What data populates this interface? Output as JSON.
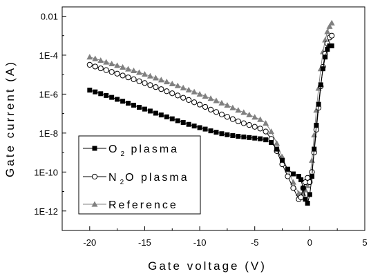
{
  "chart_data": {
    "type": "scatter",
    "xlabel": "Gate voltage (V)",
    "ylabel": "Gate current (A)",
    "xlim": [
      -22.5,
      5
    ],
    "ylim": [
      1e-13,
      0.03
    ],
    "y_scale": "log",
    "x_ticks": [
      -20,
      -15,
      -10,
      -5,
      0,
      5
    ],
    "x_tick_labels": [
      "-20",
      "-15",
      "-10",
      "-5",
      "0",
      "5"
    ],
    "y_ticks": [
      1e-12,
      1e-10,
      1e-08,
      1e-06,
      0.0001,
      0.01
    ],
    "y_tick_labels": [
      "1E-12",
      "1E-10",
      "1E-8",
      "1E-6",
      "1E-4",
      "0.01"
    ],
    "grid": false,
    "legend_position": "bottom-left",
    "series": [
      {
        "name_parts": [
          "O",
          "2",
          " plasma"
        ],
        "marker": "square-filled",
        "color": "#000000",
        "x": [
          -20,
          -19.5,
          -19,
          -18.5,
          -18,
          -17.5,
          -17,
          -16.5,
          -16,
          -15.5,
          -15,
          -14.5,
          -14,
          -13.5,
          -13,
          -12.5,
          -12,
          -11.5,
          -11,
          -10.5,
          -10,
          -9.5,
          -9,
          -8.5,
          -8,
          -7.5,
          -7,
          -6.5,
          -6,
          -5.5,
          -5,
          -4.5,
          -4,
          -3.5,
          -3,
          -2.5,
          -2,
          -1.5,
          -1,
          -0.8,
          -0.6,
          -0.4,
          -0.2,
          0,
          0.2,
          0.4,
          0.6,
          0.8,
          1,
          1.2,
          1.4,
          1.6,
          1.8,
          2
        ],
        "y": [
          1.6e-06,
          1.3e-06,
          1.05e-06,
          8.5e-07,
          6.8e-07,
          5.4e-07,
          4.3e-07,
          3.4e-07,
          2.7e-07,
          2.1e-07,
          1.7e-07,
          1.35e-07,
          1.05e-07,
          8.5e-08,
          6.8e-08,
          5.4e-08,
          4.3e-08,
          3.5e-08,
          2.8e-08,
          2.3e-08,
          1.9e-08,
          1.6e-08,
          1.3e-08,
          1.1e-08,
          9.3e-09,
          8.2e-09,
          7.4e-09,
          6.8e-09,
          6.3e-09,
          5.9e-09,
          5.5e-09,
          5.1e-09,
          4.5e-09,
          3.3e-09,
          1.5e-09,
          4e-10,
          1.4e-10,
          8e-11,
          6e-11,
          4e-11,
          1.5e-11,
          4e-12,
          2.5e-12,
          7e-12,
          6e-11,
          1.5e-09,
          2.5e-08,
          3e-07,
          3e-06,
          2e-05,
          8e-05,
          0.0002,
          0.0003,
          0.0003
        ]
      },
      {
        "name_parts": [
          "N",
          "2",
          "O plasma"
        ],
        "marker": "circle-open",
        "color": "#000000",
        "x": [
          -20,
          -19.5,
          -19,
          -18.5,
          -18,
          -17.5,
          -17,
          -16.5,
          -16,
          -15.5,
          -15,
          -14.5,
          -14,
          -13.5,
          -13,
          -12.5,
          -12,
          -11.5,
          -11,
          -10.5,
          -10,
          -9.5,
          -9,
          -8.5,
          -8,
          -7.5,
          -7,
          -6.5,
          -6,
          -5.5,
          -5,
          -4.5,
          -4,
          -3.5,
          -3,
          -2.5,
          -2,
          -1.5,
          -1,
          -0.8,
          -0.6,
          -0.4,
          -0.2,
          0,
          0.2,
          0.4,
          0.6,
          0.8,
          1,
          1.2,
          1.4,
          1.6,
          1.8,
          2
        ],
        "y": [
          3.2e-05,
          2.6e-05,
          2.1e-05,
          1.7e-05,
          1.38e-05,
          1.12e-05,
          9e-06,
          7.2e-06,
          5.8e-06,
          4.6e-06,
          3.7e-06,
          2.9e-06,
          2.3e-06,
          1.8e-06,
          1.4e-06,
          1.1e-06,
          8.5e-07,
          6.5e-07,
          5e-07,
          3.8e-07,
          2.9e-07,
          2.2e-07,
          1.6e-07,
          1.2e-07,
          9e-08,
          6.8e-08,
          5.2e-08,
          4e-08,
          3.2e-08,
          2.6e-08,
          2.1e-08,
          1.7e-08,
          1.2e-08,
          5e-09,
          1.2e-09,
          2.5e-10,
          6e-11,
          1.5e-11,
          4e-12,
          5e-12,
          1.5e-11,
          3e-11,
          5e-11,
          3e-11,
          1e-10,
          1e-09,
          1.5e-08,
          2e-07,
          2.5e-06,
          2.5e-05,
          0.00012,
          0.0004,
          0.0008,
          0.001
        ]
      },
      {
        "name_parts": [
          "Reference",
          "",
          ""
        ],
        "marker": "triangle-filled",
        "color": "#808080",
        "x": [
          -20,
          -19.5,
          -19,
          -18.5,
          -18,
          -17.5,
          -17,
          -16.5,
          -16,
          -15.5,
          -15,
          -14.5,
          -14,
          -13.5,
          -13,
          -12.5,
          -12,
          -11.5,
          -11,
          -10.5,
          -10,
          -9.5,
          -9,
          -8.5,
          -8,
          -7.5,
          -7,
          -6.5,
          -6,
          -5.5,
          -5,
          -4.5,
          -4,
          -3.5,
          -3,
          -2.5,
          -2,
          -1.5,
          -1,
          -0.8,
          -0.6,
          -0.4,
          -0.2,
          0,
          0.2,
          0.4,
          0.6,
          0.8,
          1,
          1.2,
          1.4,
          1.6,
          1.8,
          2
        ],
        "y": [
          8e-05,
          6.6e-05,
          5.4e-05,
          4.4e-05,
          3.6e-05,
          2.95e-05,
          2.4e-05,
          1.95e-05,
          1.6e-05,
          1.3e-05,
          1.05e-05,
          8.5e-06,
          6.8e-06,
          5.4e-06,
          4.3e-06,
          3.4e-06,
          2.7e-06,
          2.1e-06,
          1.65e-06,
          1.3e-06,
          1e-06,
          7.8e-07,
          6e-07,
          4.6e-07,
          3.5e-07,
          2.7e-07,
          2e-07,
          1.5e-07,
          1.15e-07,
          8.7e-08,
          6.6e-08,
          5e-08,
          3.2e-08,
          1.2e-08,
          3e-09,
          6e-10,
          1.3e-10,
          3e-11,
          8e-12,
          7e-12,
          8e-12,
          1.2e-11,
          2e-11,
          5e-11,
          4e-10,
          8e-09,
          1.5e-07,
          2e-06,
          2e-05,
          0.00015,
          0.0006,
          0.0016,
          0.003,
          0.0045
        ]
      }
    ]
  }
}
